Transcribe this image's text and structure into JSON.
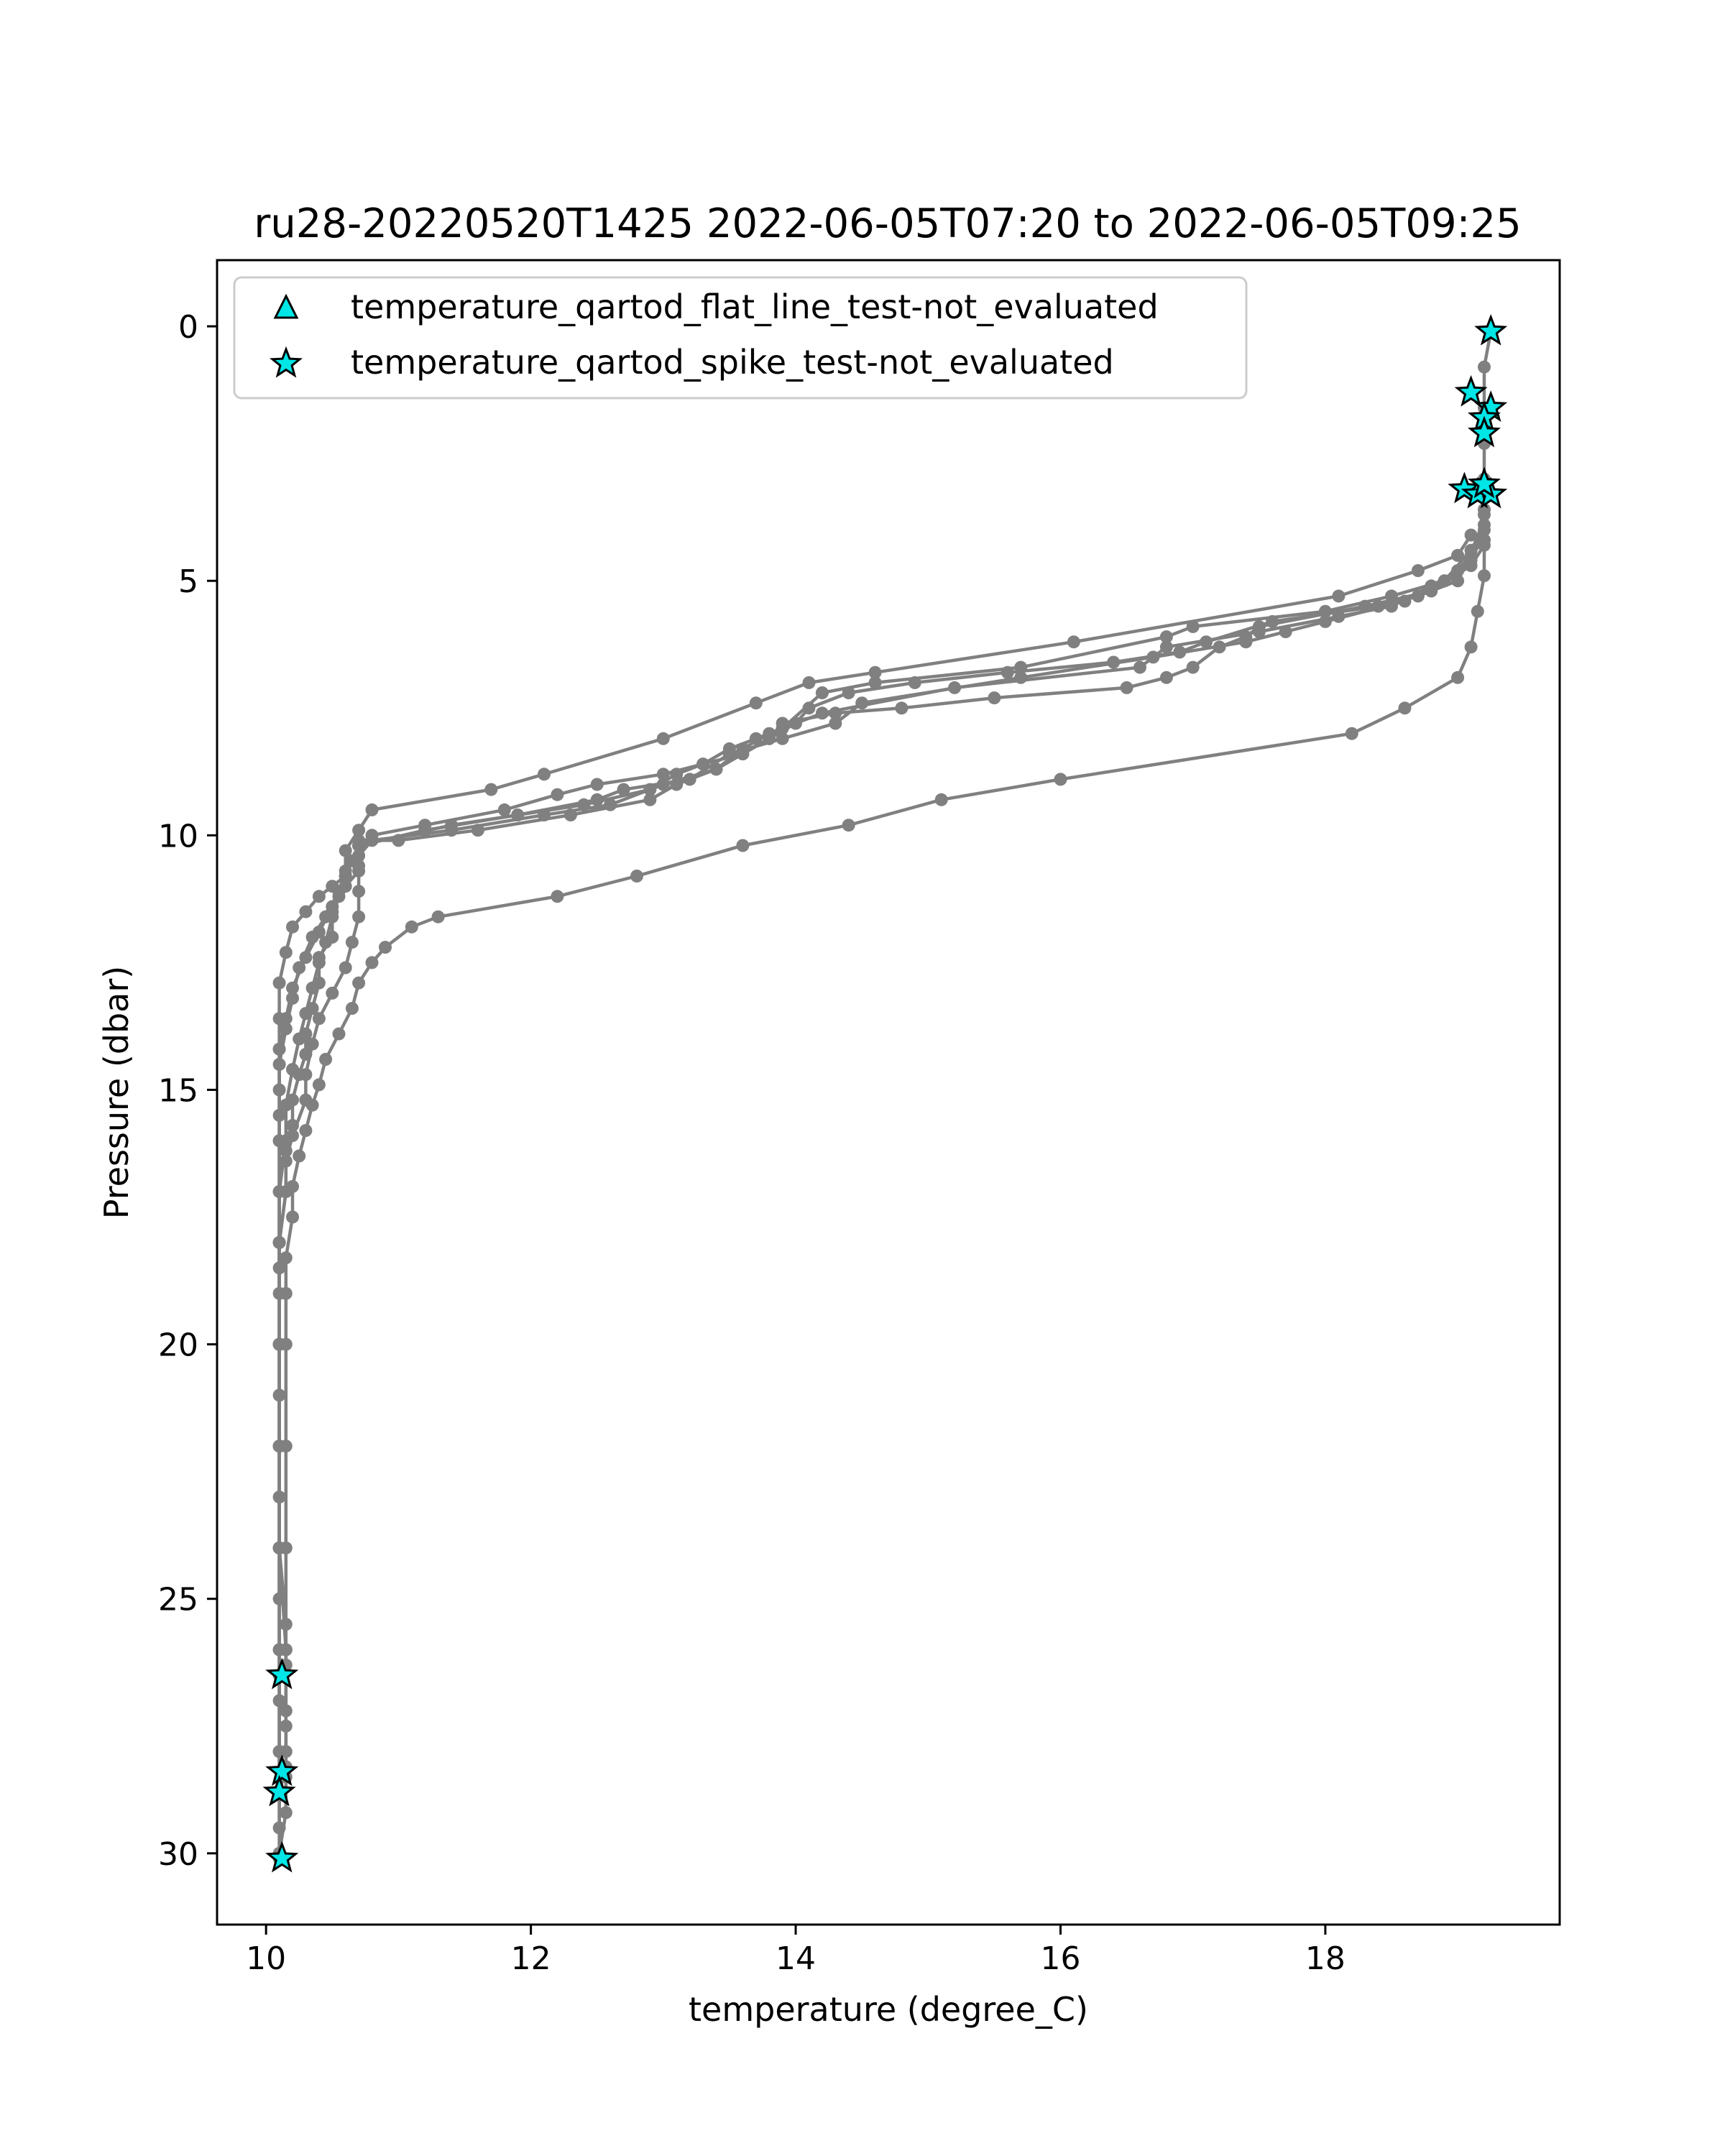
{
  "chart_data": {
    "type": "line",
    "title": "ru28-20220520T1425 2022-06-05T07:20 to 2022-06-05T09:25",
    "xlabel": "temperature (degree_C)",
    "ylabel": "Pressure (dbar)",
    "xlim": [
      9.63,
      19.77
    ],
    "ylim": [
      31.4,
      -1.3
    ],
    "y_inverted": true,
    "xticks": [
      10,
      12,
      14,
      16,
      18
    ],
    "yticks": [
      0,
      5,
      10,
      15,
      20,
      25,
      30
    ],
    "line_color": "#808080",
    "marker_color": "#00e5e5",
    "legend": {
      "placement": "top-left",
      "entries": [
        {
          "label": "temperature_qartod_flat_line_test-not_evaluated",
          "marker": "triangle"
        },
        {
          "label": "temperature_qartod_spike_test-not_evaluated",
          "marker": "star"
        }
      ]
    },
    "series": [
      {
        "points": [
          [
            19.1,
            4.1
          ],
          [
            19.0,
            4.5
          ],
          [
            18.7,
            4.8
          ],
          [
            18.1,
            5.3
          ],
          [
            16.1,
            6.2
          ],
          [
            14.6,
            6.8
          ],
          [
            14.1,
            7.0
          ],
          [
            13.7,
            7.4
          ],
          [
            13.0,
            8.1
          ],
          [
            12.1,
            8.8
          ],
          [
            11.7,
            9.1
          ],
          [
            10.8,
            9.5
          ],
          [
            10.7,
            9.9
          ],
          [
            10.6,
            10.3
          ],
          [
            10.6,
            10.8
          ],
          [
            10.5,
            11.0
          ],
          [
            10.4,
            11.2
          ],
          [
            10.3,
            11.5
          ],
          [
            10.2,
            11.8
          ],
          [
            10.15,
            12.3
          ],
          [
            10.1,
            12.9
          ],
          [
            10.1,
            13.6
          ],
          [
            10.1,
            14.2
          ],
          [
            10.1,
            15.0
          ],
          [
            10.1,
            16.0
          ],
          [
            10.1,
            18.0
          ],
          [
            10.1,
            20.0
          ],
          [
            10.1,
            22.0
          ],
          [
            10.1,
            24.0
          ],
          [
            10.1,
            26.0
          ],
          [
            10.1,
            28.0
          ],
          [
            10.1,
            30.1
          ]
        ]
      },
      {
        "points": [
          [
            19.2,
            3.9
          ],
          [
            19.1,
            4.4
          ],
          [
            18.9,
            5.0
          ],
          [
            18.5,
            5.3
          ],
          [
            18.0,
            5.6
          ],
          [
            17.0,
            5.9
          ],
          [
            16.8,
            6.1
          ],
          [
            15.7,
            6.7
          ],
          [
            14.6,
            7.0
          ],
          [
            14.2,
            7.2
          ],
          [
            13.9,
            7.9
          ],
          [
            13.7,
            8.1
          ],
          [
            13.5,
            8.3
          ],
          [
            13.3,
            8.6
          ],
          [
            13.1,
            8.8
          ],
          [
            12.9,
            9.1
          ],
          [
            12.4,
            9.4
          ],
          [
            11.9,
            9.6
          ],
          [
            11.4,
            9.8
          ],
          [
            10.7,
            10.2
          ],
          [
            10.6,
            10.8
          ],
          [
            10.5,
            11.4
          ],
          [
            10.4,
            11.9
          ],
          [
            10.3,
            12.4
          ],
          [
            10.2,
            13.0
          ],
          [
            10.15,
            13.6
          ],
          [
            10.1,
            14.2
          ],
          [
            10.1,
            16.0
          ],
          [
            10.1,
            18.0
          ],
          [
            10.1,
            20.0
          ],
          [
            10.1,
            22.0
          ],
          [
            10.1,
            24.0
          ],
          [
            10.1,
            26.5
          ]
        ]
      },
      {
        "points": [
          [
            19.2,
            4.3
          ],
          [
            19.1,
            4.7
          ],
          [
            18.8,
            5.2
          ],
          [
            18.3,
            5.5
          ],
          [
            17.5,
            5.9
          ],
          [
            17.4,
            6.1
          ],
          [
            17.2,
            6.3
          ],
          [
            17.0,
            6.7
          ],
          [
            16.8,
            6.9
          ],
          [
            16.5,
            7.1
          ],
          [
            15.5,
            7.3
          ],
          [
            14.8,
            7.5
          ],
          [
            14.3,
            7.6
          ],
          [
            13.9,
            7.8
          ],
          [
            13.8,
            8.1
          ],
          [
            13.6,
            8.4
          ],
          [
            13.4,
            8.7
          ],
          [
            13.1,
            9.0
          ],
          [
            12.9,
            9.3
          ],
          [
            12.3,
            9.6
          ],
          [
            11.6,
            9.9
          ],
          [
            11.0,
            10.1
          ],
          [
            10.7,
            10.1
          ],
          [
            10.7,
            10.6
          ],
          [
            10.7,
            11.1
          ],
          [
            10.7,
            11.6
          ],
          [
            10.65,
            12.1
          ],
          [
            10.6,
            12.6
          ],
          [
            10.5,
            13.1
          ],
          [
            10.4,
            13.6
          ],
          [
            10.35,
            14.1
          ],
          [
            10.3,
            14.7
          ],
          [
            10.3,
            15.2
          ],
          [
            10.2,
            15.9
          ],
          [
            10.15,
            16.4
          ],
          [
            10.15,
            17.0
          ],
          [
            10.1,
            18.0
          ],
          [
            10.1,
            20.0
          ],
          [
            10.1,
            22.0
          ],
          [
            10.1,
            24.0
          ],
          [
            10.15,
            25.5
          ],
          [
            10.15,
            26.3
          ],
          [
            10.15,
            27.2
          ],
          [
            10.15,
            28.3
          ],
          [
            10.1,
            28.8
          ]
        ]
      },
      {
        "points": [
          [
            19.2,
            4.0
          ],
          [
            19.1,
            4.5
          ],
          [
            19.0,
            5.0
          ],
          [
            18.7,
            5.3
          ],
          [
            18.4,
            5.5
          ],
          [
            17.6,
            5.8
          ],
          [
            17.1,
            6.2
          ],
          [
            16.9,
            6.4
          ],
          [
            16.4,
            6.6
          ],
          [
            15.6,
            6.8
          ],
          [
            14.9,
            7.0
          ],
          [
            14.4,
            7.2
          ],
          [
            14.1,
            7.5
          ],
          [
            14.0,
            7.8
          ],
          [
            13.8,
            8.1
          ],
          [
            13.6,
            8.4
          ],
          [
            13.3,
            8.6
          ],
          [
            13.0,
            8.8
          ],
          [
            12.5,
            9.0
          ],
          [
            12.2,
            9.2
          ],
          [
            11.8,
            9.5
          ],
          [
            11.2,
            9.8
          ],
          [
            10.8,
            10.0
          ],
          [
            10.7,
            10.2
          ],
          [
            10.7,
            10.7
          ],
          [
            10.6,
            11.0
          ],
          [
            10.5,
            11.5
          ],
          [
            10.5,
            12.0
          ],
          [
            10.4,
            12.4
          ],
          [
            10.4,
            12.9
          ],
          [
            10.35,
            13.4
          ],
          [
            10.3,
            13.9
          ],
          [
            10.3,
            14.3
          ],
          [
            10.25,
            14.7
          ],
          [
            10.2,
            15.2
          ],
          [
            10.2,
            15.7
          ],
          [
            10.15,
            16.2
          ],
          [
            10.15,
            17.0
          ],
          [
            10.1,
            18.0
          ],
          [
            10.1,
            20.0
          ],
          [
            10.1,
            22.0
          ],
          [
            10.1,
            24.0
          ],
          [
            10.15,
            26.0
          ],
          [
            10.15,
            27.5
          ],
          [
            10.15,
            28.5
          ]
        ]
      },
      {
        "points": [
          [
            19.25,
            0.1
          ],
          [
            19.2,
            0.8
          ],
          [
            19.2,
            1.6
          ],
          [
            19.2,
            2.3
          ],
          [
            19.2,
            3.0
          ],
          [
            19.2,
            3.6
          ],
          [
            19.2,
            4.2
          ],
          [
            19.2,
            4.9
          ],
          [
            19.15,
            5.6
          ],
          [
            19.1,
            6.3
          ],
          [
            19.0,
            6.9
          ],
          [
            18.6,
            7.5
          ],
          [
            18.2,
            8.0
          ],
          [
            16.0,
            8.9
          ],
          [
            15.1,
            9.3
          ],
          [
            14.4,
            9.8
          ],
          [
            13.6,
            10.2
          ],
          [
            12.8,
            10.8
          ],
          [
            12.2,
            11.2
          ],
          [
            11.3,
            11.6
          ],
          [
            11.1,
            11.8
          ],
          [
            10.9,
            12.2
          ],
          [
            10.8,
            12.5
          ],
          [
            10.7,
            12.9
          ],
          [
            10.65,
            13.4
          ],
          [
            10.55,
            13.9
          ],
          [
            10.45,
            14.4
          ],
          [
            10.4,
            14.9
          ],
          [
            10.35,
            15.3
          ],
          [
            10.3,
            15.8
          ],
          [
            10.25,
            16.3
          ],
          [
            10.2,
            16.9
          ],
          [
            10.2,
            17.5
          ],
          [
            10.15,
            18.3
          ],
          [
            10.15,
            19.0
          ],
          [
            10.15,
            20.0
          ],
          [
            10.15,
            22.0
          ],
          [
            10.15,
            24.0
          ],
          [
            10.15,
            26.0
          ],
          [
            10.15,
            28.0
          ],
          [
            10.15,
            29.2
          ],
          [
            10.1,
            30.0
          ]
        ]
      },
      {
        "points": [
          [
            19.2,
            3.7
          ],
          [
            19.1,
            4.6
          ],
          [
            18.9,
            5.0
          ],
          [
            18.6,
            5.4
          ],
          [
            18.0,
            5.8
          ],
          [
            17.7,
            6.0
          ],
          [
            17.4,
            6.2
          ],
          [
            16.7,
            6.5
          ],
          [
            15.7,
            6.9
          ],
          [
            14.5,
            7.4
          ],
          [
            14.3,
            7.8
          ],
          [
            13.9,
            8.1
          ],
          [
            13.5,
            8.4
          ],
          [
            13.2,
            8.9
          ],
          [
            12.7,
            9.1
          ],
          [
            12.5,
            9.3
          ],
          [
            11.9,
            9.6
          ],
          [
            11.2,
            9.9
          ],
          [
            10.7,
            10.2
          ],
          [
            10.65,
            10.5
          ],
          [
            10.6,
            10.8
          ],
          [
            10.55,
            11.2
          ],
          [
            10.5,
            11.6
          ],
          [
            10.45,
            12.1
          ],
          [
            10.4,
            12.5
          ],
          [
            10.35,
            13.0
          ],
          [
            10.3,
            13.5
          ],
          [
            10.25,
            14.0
          ],
          [
            10.2,
            14.6
          ],
          [
            10.15,
            15.3
          ],
          [
            10.15,
            16.0
          ],
          [
            10.1,
            17.0
          ],
          [
            10.1,
            18.5
          ],
          [
            10.1,
            20.0
          ],
          [
            10.1,
            22.0
          ],
          [
            10.1,
            24.0
          ],
          [
            10.1,
            26.0
          ],
          [
            10.1,
            28.0
          ],
          [
            10.1,
            29.5
          ]
        ]
      },
      {
        "points": [
          [
            19.2,
            4.2
          ],
          [
            19.0,
            4.8
          ],
          [
            18.8,
            5.1
          ],
          [
            18.5,
            5.5
          ],
          [
            18.1,
            5.7
          ],
          [
            17.5,
            6.0
          ],
          [
            16.8,
            6.3
          ],
          [
            16.6,
            6.7
          ],
          [
            15.2,
            7.1
          ],
          [
            14.2,
            7.6
          ],
          [
            13.8,
            8.0
          ],
          [
            13.6,
            8.3
          ],
          [
            13.4,
            8.7
          ],
          [
            13.0,
            9.0
          ],
          [
            12.6,
            9.4
          ],
          [
            12.1,
            9.6
          ],
          [
            11.4,
            9.9
          ],
          [
            10.8,
            10.1
          ],
          [
            10.7,
            10.4
          ],
          [
            10.6,
            10.7
          ],
          [
            10.55,
            11.1
          ],
          [
            10.45,
            11.6
          ],
          [
            10.35,
            12.0
          ],
          [
            10.25,
            12.6
          ],
          [
            10.2,
            13.2
          ],
          [
            10.15,
            13.8
          ],
          [
            10.1,
            14.5
          ],
          [
            10.1,
            15.5
          ],
          [
            10.1,
            17.0
          ],
          [
            10.1,
            19.0
          ],
          [
            10.1,
            21.0
          ],
          [
            10.1,
            23.0
          ],
          [
            10.1,
            25.0
          ],
          [
            10.1,
            27.0
          ],
          [
            10.1,
            28.8
          ]
        ]
      }
    ],
    "spike_test_points": [
      [
        19.25,
        0.1
      ],
      [
        19.1,
        1.3
      ],
      [
        19.25,
        1.6
      ],
      [
        19.2,
        1.8
      ],
      [
        19.2,
        2.1
      ],
      [
        19.05,
        3.2
      ],
      [
        19.15,
        3.3
      ],
      [
        19.25,
        3.3
      ],
      [
        19.2,
        3.1
      ],
      [
        10.12,
        26.5
      ],
      [
        10.12,
        28.4
      ],
      [
        10.1,
        28.8
      ],
      [
        10.12,
        30.1
      ]
    ],
    "flat_line_test_points": []
  }
}
